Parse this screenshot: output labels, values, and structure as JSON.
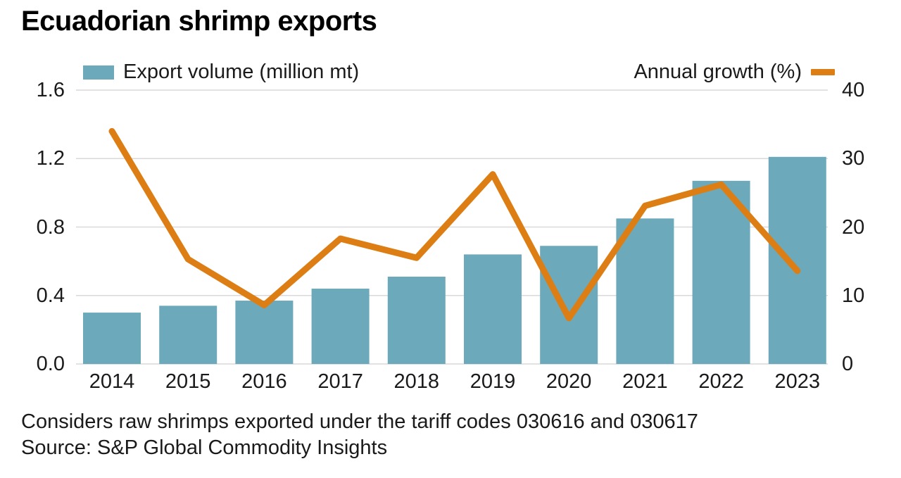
{
  "title": "Ecuadorian shrimp exports",
  "legend": {
    "volume_label": "Export volume (million mt)",
    "growth_label": "Annual growth (%)"
  },
  "footnote": "Considers raw shrimps exported under the tariff codes 030616 and 030617",
  "source": "Source: S&P Global Commodity Insights",
  "colors": {
    "bar": "#6CA9BB",
    "line": "#DD7E14",
    "grid": "#D9D9D9",
    "text": "#1A1A1A",
    "title": "#000000",
    "background": "#FFFFFF"
  },
  "chart_data": {
    "type": "bar",
    "subtype": "bar-and-line-combo",
    "title": "Ecuadorian shrimp exports",
    "categories": [
      "2014",
      "2015",
      "2016",
      "2017",
      "2018",
      "2019",
      "2020",
      "2021",
      "2022",
      "2023"
    ],
    "series": [
      {
        "name": "Export volume (million mt)",
        "type": "bar",
        "axis": "left",
        "values": [
          0.3,
          0.34,
          0.37,
          0.44,
          0.51,
          0.64,
          0.69,
          0.85,
          1.07,
          1.21
        ]
      },
      {
        "name": "Annual growth (%)",
        "type": "line",
        "axis": "right",
        "values": [
          34,
          15.3,
          8.6,
          18.3,
          15.5,
          27.7,
          6.7,
          23.1,
          26.2,
          13.6
        ]
      }
    ],
    "left_axis": {
      "ticks": [
        "0.0",
        "0.4",
        "0.8",
        "1.2",
        "1.6"
      ],
      "tick_values": [
        0,
        0.4,
        0.8,
        1.2,
        1.6
      ],
      "range": [
        0,
        1.6
      ]
    },
    "right_axis": {
      "ticks": [
        "0",
        "10",
        "20",
        "30",
        "40"
      ],
      "tick_values": [
        0,
        10,
        20,
        30,
        40
      ],
      "range": [
        0,
        40
      ]
    },
    "grid": true,
    "legend_position": "top"
  }
}
